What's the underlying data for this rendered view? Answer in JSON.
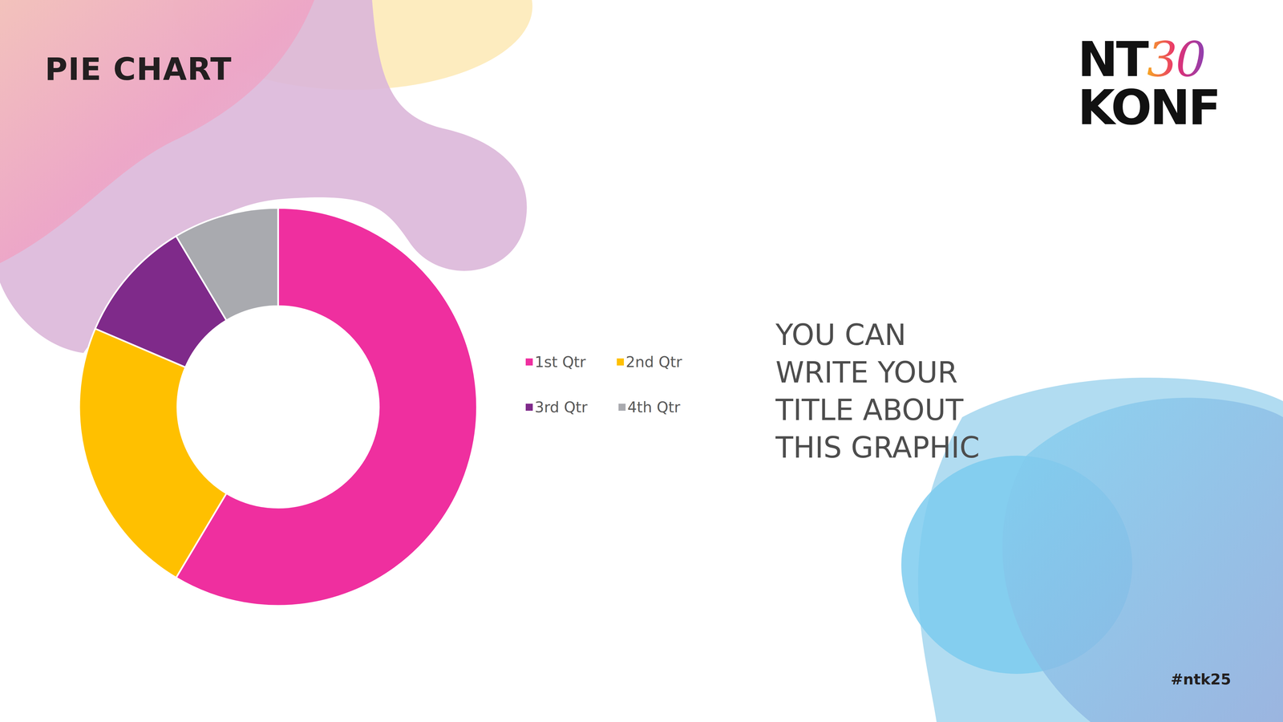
{
  "chart_data": {
    "type": "pie",
    "donut": true,
    "categories": [
      "1st Qtr",
      "2nd Qtr",
      "3rd Qtr",
      "4th Qtr"
    ],
    "values": [
      8.2,
      3.2,
      1.4,
      1.2
    ],
    "colors": [
      "#ef2f9f",
      "#ffc000",
      "#7f2a8a",
      "#a9aaaf"
    ],
    "legend": "right",
    "data_labels": false
  },
  "page": {
    "title": "PIE CHART",
    "side_text": [
      "YOU CAN",
      "WRITE YOUR",
      "TITLE ABOUT",
      "THIS GRAPHIC"
    ],
    "hashtag": "#ntk25",
    "logo": {
      "first": "NT",
      "accent": "30",
      "second": "KONF"
    }
  }
}
